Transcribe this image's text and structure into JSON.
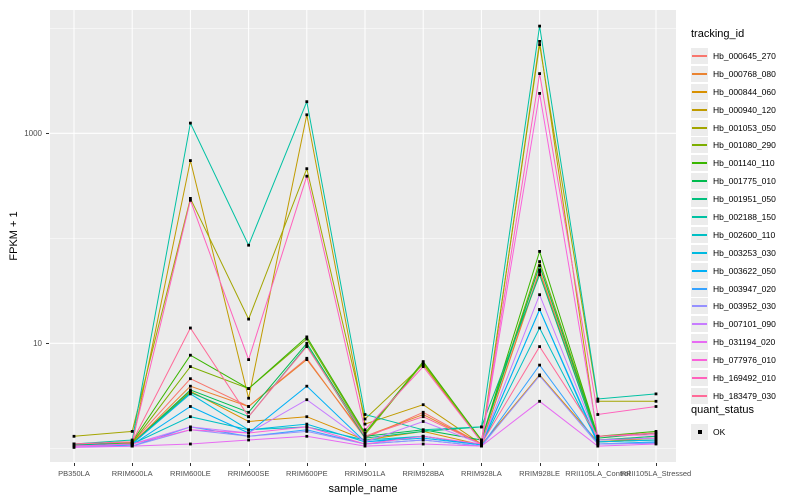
{
  "chart_data": {
    "type": "line",
    "title": "",
    "xlabel": "sample_name",
    "ylabel": "FPKM + 1",
    "y_scale": "log10",
    "ylim": [
      1,
      12600
    ],
    "grid": "on",
    "legend_position": "right",
    "legend_title": "tracking_id",
    "legend2_title": "quant_status",
    "legend2_items": [
      {
        "label": "OK",
        "symbol": "black-square"
      }
    ],
    "yticks": [
      {
        "label": "1000",
        "value": 1000
      },
      {
        "label": "10",
        "value": 10
      }
    ],
    "gridline_values": [
      1,
      10,
      100,
      1000,
      10000
    ],
    "point_marker": {
      "shape": "square",
      "color": "#000000"
    },
    "categories": [
      "PB350LA",
      "RRIM600LA",
      "RRIM600LE",
      "RRIM600SE",
      "RRIM600PE",
      "RRIM901LA",
      "RRIM928BA",
      "RRIM928LA",
      "RRIM928LE",
      "RRII105LA_Control",
      "RRII105LA_Stressed"
    ],
    "series": [
      {
        "name": "Hb_000645_270",
        "color": "#F8766D",
        "values": [
          1.1,
          1.12,
          4.6,
          2.5,
          7.2,
          1.25,
          2.2,
          1.1,
          50,
          1.2,
          1.3
        ]
      },
      {
        "name": "Hb_000768_080",
        "color": "#EA8331",
        "values": [
          1.08,
          1.1,
          3.9,
          2.5,
          7.0,
          1.3,
          2.1,
          1.1,
          48,
          1.2,
          1.25
        ]
      },
      {
        "name": "Hb_000844_060",
        "color": "#D89000",
        "values": [
          1.08,
          1.12,
          3.5,
          1.8,
          2.0,
          1.2,
          1.45,
          1.08,
          5.0,
          1.15,
          1.2
        ]
      },
      {
        "name": "Hb_000940_120",
        "color": "#C09B00",
        "values": [
          1.05,
          1.1,
          550,
          3.0,
          1500,
          1.7,
          2.6,
          1.1,
          7500,
          1.2,
          1.2
        ]
      },
      {
        "name": "Hb_001053_050",
        "color": "#A3A500",
        "values": [
          1.3,
          1.45,
          240,
          17,
          460,
          1.9,
          6.3,
          1.15,
          7000,
          2.8,
          2.8
        ]
      },
      {
        "name": "Hb_001080_290",
        "color": "#7CAE00",
        "values": [
          1.1,
          1.12,
          6.0,
          3.7,
          11.0,
          1.35,
          6.5,
          1.2,
          60,
          1.3,
          1.4
        ]
      },
      {
        "name": "Hb_001140_110",
        "color": "#39B600",
        "values": [
          1.1,
          1.15,
          7.7,
          3.7,
          11.5,
          1.4,
          6.7,
          1.2,
          75,
          1.3,
          1.45
        ]
      },
      {
        "name": "Hb_001775_010",
        "color": "#00BB4E",
        "values": [
          1.1,
          1.1,
          3.6,
          2.2,
          10.0,
          1.3,
          1.5,
          1.2,
          55,
          1.25,
          1.4
        ]
      },
      {
        "name": "Hb_001951_050",
        "color": "#00BF7D",
        "values": [
          1.08,
          1.1,
          3.4,
          2.0,
          9.5,
          1.25,
          1.45,
          1.6,
          45,
          1.2,
          1.3
        ]
      },
      {
        "name": "Hb_002188_150",
        "color": "#00C1A3",
        "values": [
          1.1,
          1.2,
          1250,
          86,
          2000,
          2.1,
          1.5,
          1.6,
          10500,
          2.95,
          3.3
        ]
      },
      {
        "name": "Hb_002600_110",
        "color": "#00BFC4",
        "values": [
          1.05,
          1.1,
          2.0,
          1.5,
          1.6,
          1.2,
          1.3,
          1.08,
          14,
          1.15,
          1.2
        ]
      },
      {
        "name": "Hb_003253_030",
        "color": "#00BAE0",
        "values": [
          1.05,
          1.1,
          3.3,
          1.5,
          1.7,
          1.15,
          1.3,
          1.08,
          21,
          1.15,
          1.2
        ]
      },
      {
        "name": "Hb_003622_050",
        "color": "#00B0F6",
        "values": [
          1.05,
          1.08,
          2.5,
          1.4,
          3.9,
          1.15,
          1.25,
          1.08,
          21,
          1.1,
          1.15
        ]
      },
      {
        "name": "Hb_003947_020",
        "color": "#35A2FF",
        "values": [
          1.05,
          1.05,
          1.6,
          1.3,
          1.5,
          1.1,
          1.2,
          1.05,
          6.2,
          1.1,
          1.12
        ]
      },
      {
        "name": "Hb_003952_030",
        "color": "#9590FF",
        "values": [
          1.05,
          1.05,
          1.5,
          1.3,
          1.45,
          1.1,
          1.2,
          1.05,
          4.9,
          1.1,
          1.12
        ]
      },
      {
        "name": "Hb_007101_090",
        "color": "#C77CFF",
        "values": [
          1.05,
          1.1,
          1.6,
          1.4,
          2.9,
          1.15,
          1.8,
          1.1,
          29,
          1.2,
          1.25
        ]
      },
      {
        "name": "Hb_031194_020",
        "color": "#E76BF3",
        "values": [
          1.02,
          1.05,
          1.1,
          1.2,
          1.3,
          1.05,
          1.1,
          1.05,
          2.8,
          1.05,
          1.1
        ]
      },
      {
        "name": "Hb_077976_010",
        "color": "#FA62DB",
        "values": [
          1.05,
          1.1,
          1.5,
          1.4,
          1.6,
          1.1,
          1.3,
          1.1,
          2400,
          1.3,
          1.35
        ]
      },
      {
        "name": "Hb_169492_010",
        "color": "#FF62BC",
        "values": [
          1.1,
          1.15,
          230,
          7.0,
          390,
          1.5,
          6.0,
          1.15,
          3700,
          2.1,
          2.5
        ]
      },
      {
        "name": "Hb_183479_030",
        "color": "#FF6A98",
        "values": [
          1.1,
          1.15,
          14,
          2.0,
          9.3,
          1.3,
          2.0,
          1.1,
          9.3,
          1.3,
          1.4
        ]
      }
    ]
  },
  "colors": {
    "panel_bg": "#EBEBEB",
    "gridline": "#FFFFFF",
    "tick_text": "#4D4D4D",
    "axis_text": "#000000",
    "legend_key_bg": "#ECECEC",
    "point": "#000000"
  }
}
